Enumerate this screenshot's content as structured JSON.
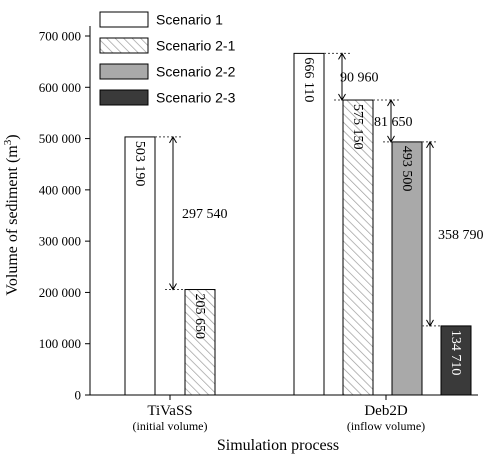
{
  "chart_data": {
    "type": "bar",
    "xlabel": "Simulation process",
    "ylabel_main": "Volume of sediment (m",
    "ylabel_sup": "3",
    "ylabel_close": ")",
    "ylim": [
      0,
      700000
    ],
    "yticks": [
      0,
      100000,
      200000,
      300000,
      400000,
      500000,
      600000,
      700000
    ],
    "ytick_labels": [
      "0",
      "100 000",
      "200 000",
      "300 000",
      "400 000",
      "500 000",
      "600 000",
      "700 000"
    ],
    "grid": false,
    "legend_position": "top-left",
    "groups": [
      {
        "name": "TiVaSS",
        "sub": "(initial volume)"
      },
      {
        "name": "Deb2D",
        "sub": "(inflow volume)"
      }
    ],
    "series": [
      {
        "name": "Scenario 1",
        "style": "white",
        "values": [
          503190,
          666110
        ],
        "labels": [
          "503 190",
          "666 110"
        ]
      },
      {
        "name": "Scenario 2-1",
        "style": "hatched",
        "values": [
          205650,
          575150
        ],
        "labels": [
          "205 650",
          "575 150"
        ]
      },
      {
        "name": "Scenario 2-2",
        "style": "gray",
        "values": [
          null,
          493500
        ],
        "labels": [
          null,
          "493 500"
        ]
      },
      {
        "name": "Scenario 2-3",
        "style": "dark",
        "values": [
          null,
          134710
        ],
        "labels": [
          null,
          "134 710"
        ]
      }
    ],
    "differences": [
      {
        "group": 0,
        "from": 503190,
        "to": 205650,
        "label": "297 540"
      },
      {
        "group": 1,
        "from": 666110,
        "to": 575150,
        "label": "90 960"
      },
      {
        "group": 1,
        "from": 575150,
        "to": 493500,
        "label": "81 650"
      },
      {
        "group": 1,
        "from": 493500,
        "to": 134710,
        "label": "358 790"
      }
    ],
    "colors": {
      "white": "#ffffff",
      "gray": "#a9a9a9",
      "dark": "#3a3a3a",
      "hatch": "#9a9a9a",
      "axis": "#000000"
    }
  }
}
